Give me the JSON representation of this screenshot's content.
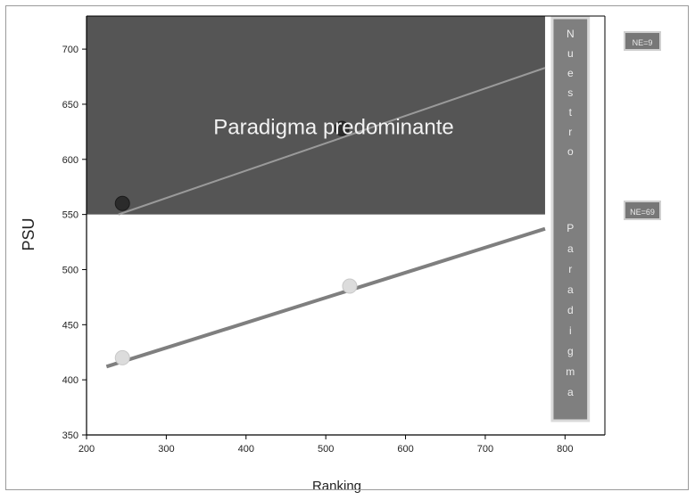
{
  "chart_data": {
    "type": "scatter",
    "xlabel": "Ranking",
    "ylabel": "PSU",
    "xlim": [
      200,
      850
    ],
    "ylim": [
      350,
      730
    ],
    "xticks": [
      200,
      300,
      400,
      500,
      600,
      700,
      800
    ],
    "yticks": [
      350,
      400,
      450,
      500,
      550,
      600,
      650,
      700
    ],
    "grid": false,
    "shaded_region": {
      "label": "Paradigma predominante",
      "x_range": [
        200,
        775
      ],
      "y_range": [
        550,
        730
      ],
      "color": "#555555"
    },
    "vertical_box": {
      "top_text": "Nuestro",
      "bottom_text": "Paradigma",
      "x_range": [
        775,
        825
      ],
      "color": "#7f7f7f"
    },
    "series": [
      {
        "points": [
          {
            "x": 245,
            "y": 560
          },
          {
            "x": 520,
            "y": 628
          }
        ],
        "trend": {
          "x": [
            240,
            775
          ],
          "y": [
            550,
            683
          ]
        },
        "point_color": "#2b2b2b",
        "line_color": "#9a9a9a",
        "tag": "NE=9"
      },
      {
        "points": [
          {
            "x": 245,
            "y": 420
          },
          {
            "x": 530,
            "y": 485
          }
        ],
        "trend": {
          "x": [
            225,
            775
          ],
          "y": [
            412,
            537
          ]
        },
        "point_color": "#dcdcdc",
        "line_color": "#7f7f7f",
        "tag": "NE=69"
      }
    ]
  }
}
